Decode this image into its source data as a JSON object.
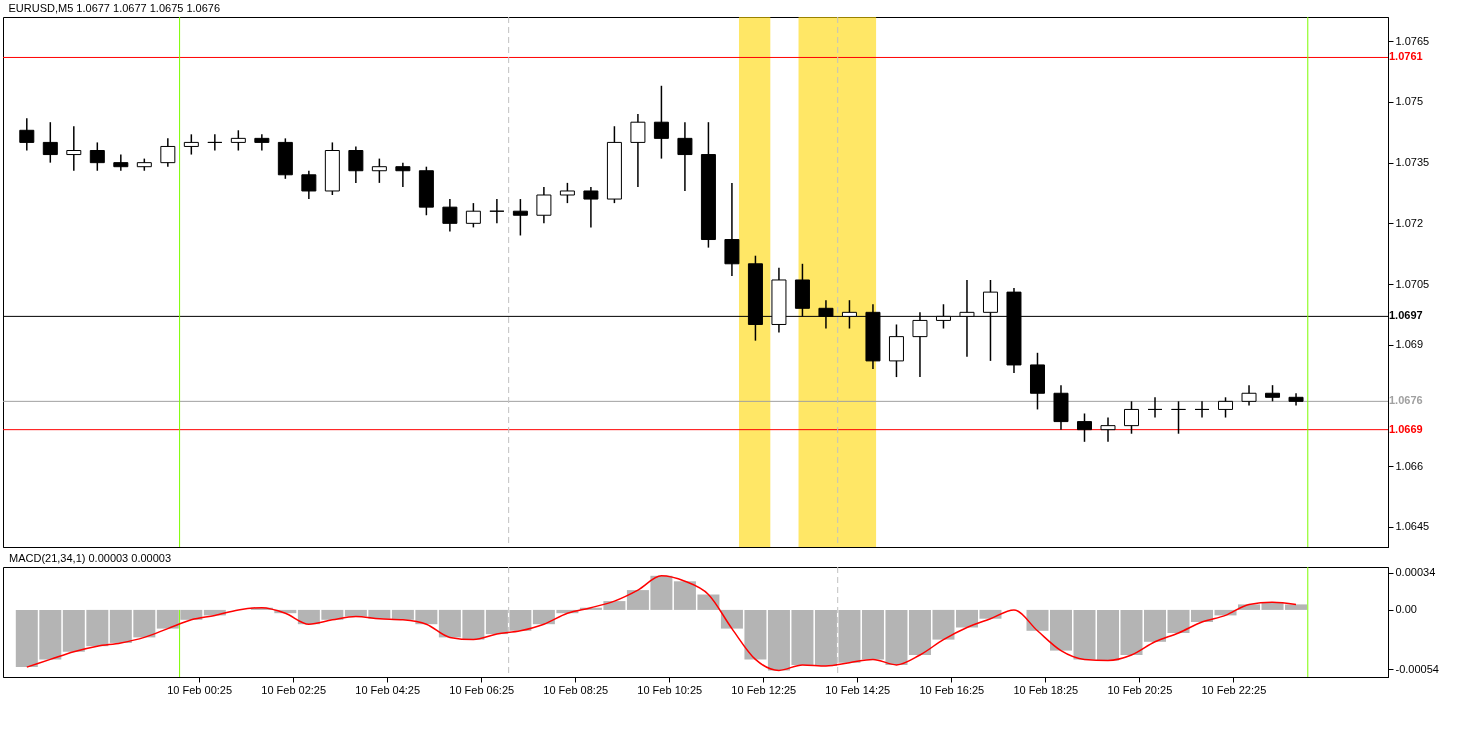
{
  "chart_data": [
    {
      "type": "candlestick",
      "title": "EURUSD,M5 1.0677 1.0677 1.0675 1.0676",
      "x": [
        "--02-09T20:45",
        "--02-09T21:15",
        "--02-09T21:45",
        "--02-09T22:15",
        "--02-09T22:45",
        "--02-09T23:15",
        "--02-09T23:45",
        "--02-10T00:15",
        "--02-10T00:45",
        "--02-10T01:15",
        "--02-10T01:45",
        "--02-10T02:15",
        "--02-10T02:45",
        "--02-10T03:15",
        "--02-10T03:45",
        "--02-10T04:15",
        "--02-10T04:45",
        "--02-10T05:15",
        "--02-10T05:45",
        "--02-10T06:15",
        "--02-10T06:45",
        "--02-10T07:15",
        "--02-10T07:45",
        "--02-10T08:15",
        "--02-10T08:45",
        "--02-10T09:15",
        "--02-10T09:45",
        "--02-10T10:15",
        "--02-10T10:45",
        "--02-10T11:15",
        "--02-10T11:45",
        "--02-10T12:15",
        "--02-10T12:45",
        "--02-10T13:15",
        "--02-10T13:45",
        "--02-10T14:15",
        "--02-10T14:45",
        "--02-10T15:15",
        "--02-10T15:45",
        "--02-10T16:15",
        "--02-10T16:45",
        "--02-10T17:15",
        "--02-10T17:45",
        "--02-10T18:15",
        "--02-10T18:45",
        "--02-10T19:15",
        "--02-10T19:45",
        "--02-10T20:15",
        "--02-10T20:45",
        "--02-10T21:15",
        "--02-10T21:45",
        "--02-10T22:15",
        "--02-10T22:45",
        "--02-10T23:15",
        "--02-10T23:45"
      ],
      "ohlc": [
        [
          1.0743,
          1.0746,
          1.0738,
          1.074
        ],
        [
          1.074,
          1.0745,
          1.0735,
          1.0737
        ],
        [
          1.0737,
          1.0744,
          1.0733,
          1.0738
        ],
        [
          1.0738,
          1.074,
          1.0733,
          1.0735
        ],
        [
          1.0735,
          1.0737,
          1.0733,
          1.0734
        ],
        [
          1.0734,
          1.0736,
          1.0733,
          1.0735
        ],
        [
          1.0735,
          1.0741,
          1.0734,
          1.0739
        ],
        [
          1.0739,
          1.0742,
          1.0737,
          1.074
        ],
        [
          1.074,
          1.0742,
          1.0738,
          1.074
        ],
        [
          1.074,
          1.0743,
          1.0738,
          1.0741
        ],
        [
          1.0741,
          1.0742,
          1.0738,
          1.074
        ],
        [
          1.074,
          1.0741,
          1.0731,
          1.0732
        ],
        [
          1.0732,
          1.0733,
          1.0726,
          1.0728
        ],
        [
          1.0728,
          1.074,
          1.0727,
          1.0738
        ],
        [
          1.0738,
          1.0739,
          1.073,
          1.0733
        ],
        [
          1.0733,
          1.0736,
          1.073,
          1.0734
        ],
        [
          1.0734,
          1.0735,
          1.0729,
          1.0733
        ],
        [
          1.0733,
          1.0734,
          1.0722,
          1.0724
        ],
        [
          1.0724,
          1.0726,
          1.0718,
          1.072
        ],
        [
          1.072,
          1.0725,
          1.0719,
          1.0723
        ],
        [
          1.0723,
          1.0726,
          1.072,
          1.0723
        ],
        [
          1.0723,
          1.0726,
          1.0717,
          1.0722
        ],
        [
          1.0722,
          1.0729,
          1.072,
          1.0727
        ],
        [
          1.0727,
          1.073,
          1.0725,
          1.0728
        ],
        [
          1.0728,
          1.0729,
          1.0719,
          1.0726
        ],
        [
          1.0726,
          1.0744,
          1.0725,
          1.074
        ],
        [
          1.074,
          1.0747,
          1.0729,
          1.0745
        ],
        [
          1.0745,
          1.0754,
          1.0736,
          1.0741
        ],
        [
          1.0741,
          1.0745,
          1.0728,
          1.0737
        ],
        [
          1.0737,
          1.0745,
          1.0714,
          1.0716
        ],
        [
          1.0716,
          1.073,
          1.0707,
          1.071
        ],
        [
          1.071,
          1.0712,
          1.0691,
          1.0695
        ],
        [
          1.0695,
          1.0709,
          1.0693,
          1.0706
        ],
        [
          1.0706,
          1.071,
          1.0697,
          1.0699
        ],
        [
          1.0699,
          1.0701,
          1.0694,
          1.0697
        ],
        [
          1.0697,
          1.0701,
          1.0694,
          1.0698
        ],
        [
          1.0698,
          1.07,
          1.0684,
          1.0686
        ],
        [
          1.0686,
          1.0695,
          1.0682,
          1.0692
        ],
        [
          1.0692,
          1.0698,
          1.0682,
          1.0696
        ],
        [
          1.0696,
          1.07,
          1.0694,
          1.0697
        ],
        [
          1.0697,
          1.0706,
          1.0687,
          1.0698
        ],
        [
          1.0698,
          1.0706,
          1.0686,
          1.0703
        ],
        [
          1.0703,
          1.0704,
          1.0683,
          1.0685
        ],
        [
          1.0685,
          1.0688,
          1.0674,
          1.0678
        ],
        [
          1.0678,
          1.068,
          1.0669,
          1.0671
        ],
        [
          1.0671,
          1.0673,
          1.0666,
          1.0669
        ],
        [
          1.0669,
          1.0672,
          1.0666,
          1.067
        ],
        [
          1.067,
          1.0676,
          1.0668,
          1.0674
        ],
        [
          1.0674,
          1.0677,
          1.0672,
          1.0674
        ],
        [
          1.0674,
          1.0676,
          1.0668,
          1.0674
        ],
        [
          1.0674,
          1.0676,
          1.0672,
          1.0674
        ],
        [
          1.0674,
          1.0677,
          1.0672,
          1.0676
        ],
        [
          1.0676,
          1.068,
          1.0675,
          1.0678
        ],
        [
          1.0678,
          1.068,
          1.0676,
          1.0677
        ],
        [
          1.0677,
          1.0678,
          1.0675,
          1.0676
        ]
      ],
      "xlim": [
        "--02-09T20:21",
        "--02-11T01:36"
      ],
      "ylim": [
        1.064,
        1.0771
      ],
      "xticks": [
        {
          "value": "--02-10T00:25",
          "label": null
        },
        {
          "value": "--02-10T22:25",
          "label": null
        }
      ],
      "yticks": [
        1.0645,
        1.066,
        1.069,
        1.0705,
        1.072,
        1.0735,
        1.075,
        1.0765
      ],
      "tick_labels": "y",
      "ref_lines": [
        {
          "axis": "y",
          "value": 1.0761,
          "label": "1.0761",
          "color": "#ff0000"
        },
        {
          "axis": "y",
          "value": 1.0697,
          "label": "1.0697",
          "color": "#000000"
        },
        {
          "axis": "y",
          "value": 1.0676,
          "label": "1.0676",
          "color": "#a0a0a0"
        },
        {
          "axis": "y",
          "value": 1.0669,
          "label": "1.0669",
          "color": "#ff0000"
        },
        {
          "axis": "x",
          "value": "--02-10T00:00",
          "color": "#7cfc00"
        },
        {
          "axis": "x",
          "value": "--02-11T00:00",
          "color": "#7cfc00"
        },
        {
          "axis": "x",
          "value": "--02-10T07:00",
          "color": "#c0c0c0",
          "line_style": "dashed"
        },
        {
          "axis": "x",
          "value": "--02-10T14:00",
          "color": "#c0c0c0",
          "line_style": "dashed"
        }
      ],
      "bands": [
        {
          "axis": "x",
          "from": "--02-10T11:54",
          "to": "--02-10T12:34",
          "color": "#ffd700"
        },
        {
          "axis": "x",
          "from": "--02-10T13:10",
          "to": "--02-10T14:49",
          "color": "#ffd700"
        }
      ]
    },
    {
      "type": "bar",
      "title": "MACD(21,34,1) 0.00003 0.00003",
      "x": [
        "--02-09T20:45",
        "--02-09T21:15",
        "--02-09T21:45",
        "--02-09T22:15",
        "--02-09T22:45",
        "--02-09T23:15",
        "--02-09T23:45",
        "--02-10T00:15",
        "--02-10T00:45",
        "--02-10T01:15",
        "--02-10T01:45",
        "--02-10T02:15",
        "--02-10T02:45",
        "--02-10T03:15",
        "--02-10T03:45",
        "--02-10T04:15",
        "--02-10T04:45",
        "--02-10T05:15",
        "--02-10T05:45",
        "--02-10T06:15",
        "--02-10T06:45",
        "--02-10T07:15",
        "--02-10T07:45",
        "--02-10T08:15",
        "--02-10T08:45",
        "--02-10T09:15",
        "--02-10T09:45",
        "--02-10T10:15",
        "--02-10T10:45",
        "--02-10T11:15",
        "--02-10T11:45",
        "--02-10T12:15",
        "--02-10T12:45",
        "--02-10T13:15",
        "--02-10T13:45",
        "--02-10T14:15",
        "--02-10T14:45",
        "--02-10T15:15",
        "--02-10T15:45",
        "--02-10T16:15",
        "--02-10T16:45",
        "--02-10T17:15",
        "--02-10T17:45",
        "--02-10T18:15",
        "--02-10T18:45",
        "--02-10T19:15",
        "--02-10T19:45",
        "--02-10T20:15",
        "--02-10T20:45",
        "--02-10T21:15",
        "--02-10T21:45",
        "--02-10T22:15",
        "--02-10T22:45",
        "--02-10T23:15",
        "--02-10T23:45"
      ],
      "series": [
        {
          "type": "bar",
          "color": "#b4b4b4",
          "values": [
            -0.00052,
            -0.00045,
            -0.00038,
            -0.00033,
            -0.0003,
            -0.00025,
            -0.00017,
            -9e-05,
            -5e-05,
            0,
            2e-05,
            -3e-05,
            -0.00013,
            -9e-05,
            -6e-05,
            -8e-05,
            -9e-05,
            -0.00013,
            -0.00025,
            -0.00027,
            -0.00022,
            -0.00019,
            -0.00013,
            -3e-05,
            2e-05,
            8e-05,
            0.00018,
            0.00031,
            0.00026,
            0.00014,
            -0.00017,
            -0.00045,
            -0.00055,
            -0.0005,
            -0.00051,
            -0.00048,
            -0.00045,
            -0.0005,
            -0.00041,
            -0.00027,
            -0.00016,
            -8e-05,
            0,
            -0.00019,
            -0.00037,
            -0.00045,
            -0.00046,
            -0.00041,
            -0.00029,
            -0.00021,
            -0.00011,
            -5e-05,
            5e-05,
            7e-05,
            5e-05
          ]
        },
        {
          "type": "line",
          "color": "#ff0000",
          "values": [
            -0.00052,
            -0.00045,
            -0.00038,
            -0.00033,
            -0.0003,
            -0.00025,
            -0.00017,
            -9e-05,
            -5e-05,
            0,
            2e-05,
            -3e-05,
            -0.00013,
            -9e-05,
            -6e-05,
            -8e-05,
            -9e-05,
            -0.00013,
            -0.00025,
            -0.00027,
            -0.00022,
            -0.00019,
            -0.00013,
            -3e-05,
            2e-05,
            8e-05,
            0.00018,
            0.00031,
            0.00026,
            0.00014,
            -0.00017,
            -0.00045,
            -0.00055,
            -0.0005,
            -0.00051,
            -0.00048,
            -0.00045,
            -0.0005,
            -0.00041,
            -0.00027,
            -0.00016,
            -8e-05,
            0,
            -0.00019,
            -0.00037,
            -0.00045,
            -0.00046,
            -0.00041,
            -0.00029,
            -0.00021,
            -0.00011,
            -5e-05,
            5e-05,
            7e-05,
            5e-05
          ]
        }
      ],
      "xlim": [
        "--02-09T20:21",
        "--02-11T01:36"
      ],
      "ylim": [
        -0.00061,
        0.00039
      ],
      "yticks": [
        0.00034,
        {
          "value": 0,
          "label": "0.00"
        },
        -0.00054
      ],
      "xticks": [
        {
          "value": "--02-10T00:25",
          "label": "10 Feb 00:25"
        },
        {
          "value": "--02-10T02:25",
          "label": "10 Feb 02:25"
        },
        {
          "value": "--02-10T04:25",
          "label": "10 Feb 04:25"
        },
        {
          "value": "--02-10T06:25",
          "label": "10 Feb 06:25"
        },
        {
          "value": "--02-10T08:25",
          "label": "10 Feb 08:25"
        },
        {
          "value": "--02-10T10:25",
          "label": "10 Feb 10:25"
        },
        {
          "value": "--02-10T12:25",
          "label": "10 Feb 12:25"
        },
        {
          "value": "--02-10T14:25",
          "label": "10 Feb 14:25"
        },
        {
          "value": "--02-10T16:25",
          "label": "10 Feb 16:25"
        },
        {
          "value": "--02-10T18:25",
          "label": "10 Feb 18:25"
        },
        {
          "value": "--02-10T20:25",
          "label": "10 Feb 20:25"
        },
        {
          "value": "--02-10T22:25",
          "label": "10 Feb 22:25"
        }
      ],
      "ref_lines": [
        {
          "axis": "x",
          "value": "--02-10T00:00",
          "color": "#7cfc00"
        },
        {
          "axis": "x",
          "value": "--02-11T00:00",
          "color": "#7cfc00"
        },
        {
          "axis": "x",
          "value": "--02-10T07:00",
          "color": "#c0c0c0",
          "line_style": "dashed"
        },
        {
          "axis": "x",
          "value": "--02-10T14:00",
          "color": "#c0c0c0",
          "line_style": "dashed"
        }
      ]
    }
  ]
}
